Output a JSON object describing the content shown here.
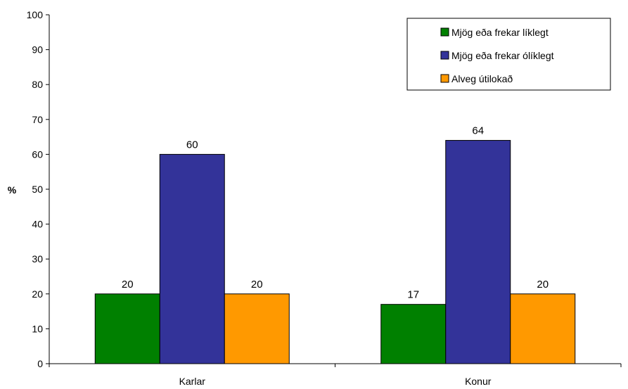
{
  "chart_data": {
    "type": "bar",
    "categories": [
      "Karlar",
      "Konur"
    ],
    "series": [
      {
        "name": "Mjög eða frekar líklegt",
        "values": [
          20,
          17
        ],
        "color": "#008000"
      },
      {
        "name": "Mjög eða frekar ólíklegt",
        "values": [
          60,
          64
        ],
        "color": "#333399"
      },
      {
        "name": "Alveg útilokað",
        "values": [
          20,
          20
        ],
        "color": "#FF9900"
      }
    ],
    "data_labels": [
      [
        "20",
        "17"
      ],
      [
        "60",
        "64"
      ],
      [
        "20",
        "20"
      ]
    ],
    "ylabel": "%",
    "ylim": [
      0,
      100
    ],
    "yticks": [
      0,
      10,
      20,
      30,
      40,
      50,
      60,
      70,
      80,
      90,
      100
    ],
    "legend_position": "top-right",
    "grid": false
  }
}
